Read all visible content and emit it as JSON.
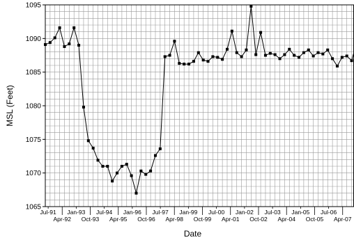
{
  "chart_data": {
    "type": "line",
    "xlabel": "Date",
    "ylabel": "MSL (Feet)",
    "ylim": [
      1065,
      1095
    ],
    "ytick_values": [
      1065,
      1070,
      1075,
      1080,
      1085,
      1090,
      1095
    ],
    "ytick_labels": [
      "1065",
      "1070",
      "1075",
      "1080",
      "1085",
      "1090",
      "1095"
    ],
    "xlim": [
      0,
      64.5
    ],
    "xtick_labels": [
      "Jul-91",
      "Apr-92",
      "Jan-93",
      "Oct-93",
      "Jul-94",
      "Apr-95",
      "Jan-96",
      "Oct-96",
      "Jul-97",
      "Apr-98",
      "Jan-99",
      "Oct-99",
      "Jul-00",
      "Apr-01",
      "Jan-02",
      "Oct-02",
      "Jul-03",
      "Apr-04",
      "Jan-05",
      "Oct-05",
      "Jul-06",
      "Apr-07"
    ],
    "grid": true,
    "series": [
      {
        "color": "#000000",
        "marker": "square",
        "values": [
          1089.1,
          1089.4,
          1090.1,
          1091.6,
          1088.8,
          1089.2,
          1091.6,
          1089.0,
          1079.8,
          1074.8,
          1073.7,
          1071.9,
          1071.0,
          1071.0,
          1068.8,
          1070.0,
          1071.0,
          1071.3,
          1069.6,
          1067.0,
          1070.3,
          1069.8,
          1070.3,
          1072.6,
          1073.6,
          1087.3,
          1087.5,
          1089.6,
          1086.3,
          1086.2,
          1086.2,
          1086.6,
          1087.9,
          1086.8,
          1086.6,
          1087.3,
          1087.2,
          1086.9,
          1088.4,
          1091.1,
          1087.9,
          1087.3,
          1088.3,
          1094.8,
          1087.6,
          1090.9,
          1087.5,
          1087.8,
          1087.6,
          1087.0,
          1087.6,
          1088.4,
          1087.5,
          1087.2,
          1087.9,
          1088.3,
          1087.4,
          1087.9,
          1087.7,
          1088.3,
          1087.0,
          1085.9,
          1087.2,
          1087.4,
          1086.7,
          1089.3
        ]
      }
    ]
  }
}
